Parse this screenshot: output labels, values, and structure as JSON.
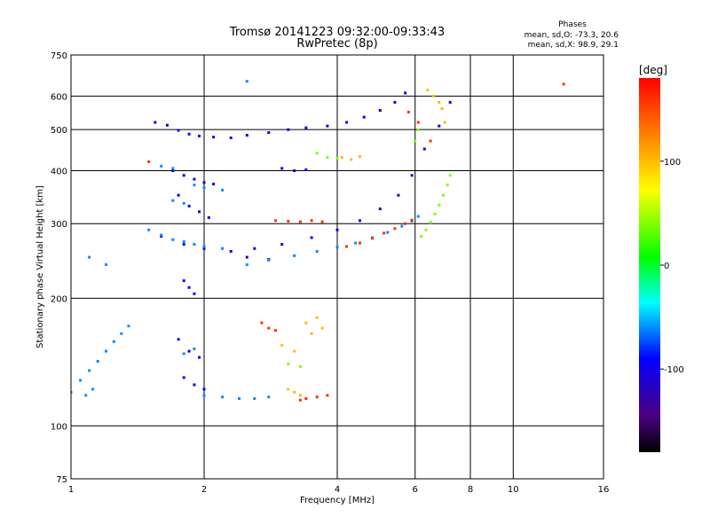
{
  "chart_data": {
    "type": "scatter",
    "title_line1": "Tromsø 20141223 09:32:00-09:33:43",
    "title_line2": "RwPretec (8p)",
    "phase_title": "Phases",
    "phase_line_o": "mean, sd,O: -73.3, 20.6",
    "phase_line_x": "mean, sd,X:  98.9, 29.1",
    "xlabel": "Frequency [MHz]",
    "ylabel": "Stationary phase Virtual Height [km]",
    "x_scale": "log",
    "y_scale": "log",
    "xlim": [
      1,
      16
    ],
    "ylim": [
      75,
      750
    ],
    "x_ticks": [
      1,
      2,
      4,
      6,
      8,
      10,
      16
    ],
    "x_tick_labels": [
      "1",
      "2",
      "4",
      "6",
      "8",
      "10",
      "16"
    ],
    "y_ticks": [
      75,
      100,
      200,
      300,
      400,
      500,
      600,
      750
    ],
    "y_tick_labels": [
      "75",
      "100",
      "200",
      "300",
      "400",
      "500",
      "600",
      "750"
    ],
    "grid": true,
    "colorbar": {
      "unit": "[deg]",
      "range": [
        -180,
        180
      ],
      "tick_values": [
        -100,
        0,
        100
      ],
      "tick_labels": [
        "-100",
        "0",
        "100"
      ]
    },
    "series": [
      {
        "phase": -95,
        "points": [
          [
            1.55,
            520
          ],
          [
            1.65,
            512
          ],
          [
            1.75,
            498
          ],
          [
            1.85,
            488
          ],
          [
            1.95,
            483
          ],
          [
            2.1,
            480
          ],
          [
            2.3,
            478
          ],
          [
            2.5,
            485
          ],
          [
            2.8,
            492
          ],
          [
            3.1,
            500
          ],
          [
            3.4,
            505
          ],
          [
            3.8,
            510
          ],
          [
            4.2,
            520
          ],
          [
            4.6,
            535
          ],
          [
            5.0,
            555
          ],
          [
            5.4,
            580
          ],
          [
            5.7,
            610
          ],
          [
            1.7,
            400
          ],
          [
            1.8,
            390
          ],
          [
            1.9,
            382
          ],
          [
            2.0,
            375
          ],
          [
            2.1,
            372
          ],
          [
            1.75,
            350
          ],
          [
            1.85,
            330
          ],
          [
            1.95,
            320
          ],
          [
            2.05,
            310
          ],
          [
            1.6,
            280
          ],
          [
            1.8,
            268
          ],
          [
            2.0,
            262
          ],
          [
            2.3,
            258
          ],
          [
            2.6,
            262
          ],
          [
            3.0,
            268
          ],
          [
            3.5,
            278
          ],
          [
            4.0,
            290
          ],
          [
            4.5,
            305
          ],
          [
            5.0,
            325
          ],
          [
            5.5,
            350
          ],
          [
            5.9,
            390
          ],
          [
            6.3,
            450
          ],
          [
            6.8,
            510
          ],
          [
            7.2,
            580
          ],
          [
            3.0,
            405
          ],
          [
            3.2,
            400
          ],
          [
            3.4,
            402
          ],
          [
            2.5,
            250
          ],
          [
            2.8,
            247
          ],
          [
            1.8,
            220
          ],
          [
            1.85,
            212
          ],
          [
            1.9,
            205
          ],
          [
            1.75,
            160
          ],
          [
            1.85,
            150
          ],
          [
            1.95,
            145
          ],
          [
            1.8,
            130
          ],
          [
            1.9,
            125
          ],
          [
            2.0,
            122
          ]
        ]
      },
      {
        "phase": -60,
        "points": [
          [
            1.0,
            120
          ],
          [
            1.05,
            128
          ],
          [
            1.1,
            135
          ],
          [
            1.15,
            142
          ],
          [
            1.2,
            150
          ],
          [
            1.25,
            158
          ],
          [
            1.3,
            165
          ],
          [
            1.35,
            172
          ],
          [
            1.08,
            118
          ],
          [
            1.12,
            122
          ],
          [
            1.5,
            290
          ],
          [
            1.6,
            282
          ],
          [
            1.7,
            275
          ],
          [
            1.8,
            272
          ],
          [
            1.9,
            268
          ],
          [
            2.0,
            265
          ],
          [
            2.2,
            262
          ],
          [
            1.7,
            340
          ],
          [
            1.8,
            335
          ],
          [
            1.6,
            410
          ],
          [
            1.7,
            405
          ],
          [
            1.9,
            370
          ],
          [
            2.0,
            365
          ],
          [
            2.2,
            360
          ],
          [
            2.5,
            240
          ],
          [
            2.8,
            246
          ],
          [
            3.2,
            252
          ],
          [
            3.6,
            258
          ],
          [
            4.0,
            264
          ],
          [
            4.4,
            270
          ],
          [
            4.8,
            278
          ],
          [
            5.2,
            286
          ],
          [
            5.6,
            296
          ],
          [
            5.9,
            304
          ],
          [
            6.1,
            312
          ],
          [
            2.0,
            118
          ],
          [
            2.2,
            117
          ],
          [
            2.4,
            116
          ],
          [
            2.6,
            116
          ],
          [
            2.8,
            117
          ],
          [
            1.8,
            148
          ],
          [
            1.9,
            152
          ],
          [
            2.5,
            650
          ],
          [
            1.2,
            240
          ],
          [
            1.1,
            250
          ]
        ]
      },
      {
        "phase": 40,
        "points": [
          [
            6.2,
            280
          ],
          [
            6.35,
            290
          ],
          [
            6.5,
            302
          ],
          [
            6.65,
            316
          ],
          [
            6.8,
            332
          ],
          [
            6.95,
            350
          ],
          [
            7.1,
            370
          ],
          [
            7.2,
            390
          ],
          [
            6.0,
            470
          ],
          [
            6.1,
            500
          ],
          [
            3.6,
            440
          ],
          [
            3.8,
            430
          ],
          [
            4.0,
            428
          ],
          [
            3.1,
            140
          ],
          [
            3.3,
            138
          ]
        ]
      },
      {
        "phase": 100,
        "points": [
          [
            6.6,
            600
          ],
          [
            6.8,
            580
          ],
          [
            6.9,
            560
          ],
          [
            7.0,
            520
          ],
          [
            6.4,
            620
          ],
          [
            4.1,
            430
          ],
          [
            4.3,
            425
          ],
          [
            4.5,
            432
          ],
          [
            3.4,
            175
          ],
          [
            3.6,
            180
          ],
          [
            3.5,
            165
          ],
          [
            3.7,
            170
          ],
          [
            3.0,
            155
          ],
          [
            3.2,
            150
          ],
          [
            3.1,
            122
          ],
          [
            3.2,
            120
          ],
          [
            3.3,
            118
          ]
        ]
      },
      {
        "phase": 160,
        "points": [
          [
            2.9,
            305
          ],
          [
            3.1,
            304
          ],
          [
            3.3,
            303
          ],
          [
            3.5,
            305
          ],
          [
            3.7,
            303
          ],
          [
            4.2,
            265
          ],
          [
            4.5,
            270
          ],
          [
            4.8,
            277
          ],
          [
            5.1,
            285
          ],
          [
            5.4,
            292
          ],
          [
            5.7,
            300
          ],
          [
            5.9,
            306
          ],
          [
            3.4,
            116
          ],
          [
            3.6,
            117
          ],
          [
            3.8,
            118
          ],
          [
            3.3,
            115
          ],
          [
            2.7,
            175
          ],
          [
            2.8,
            170
          ],
          [
            2.9,
            168
          ],
          [
            5.8,
            550
          ],
          [
            6.1,
            520
          ],
          [
            6.5,
            470
          ],
          [
            13.0,
            640
          ],
          [
            1.5,
            420
          ]
        ]
      }
    ]
  }
}
